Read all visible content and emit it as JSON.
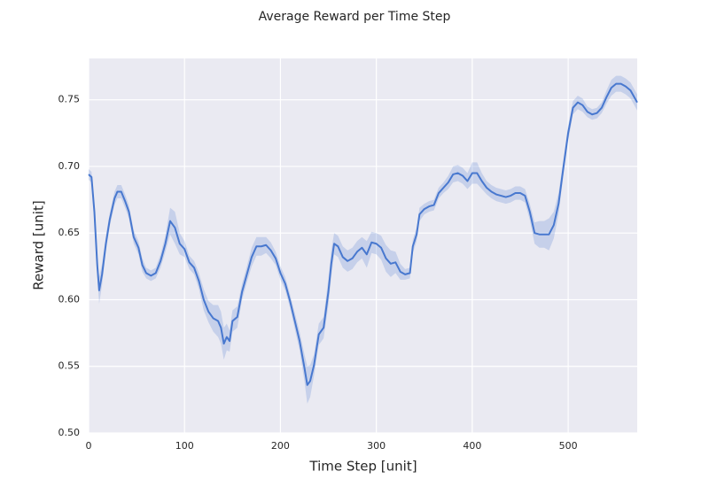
{
  "chart_data": {
    "type": "line",
    "title": "Average Reward per Time Step",
    "xlabel": "Time Step [unit]",
    "ylabel": "Reward [unit]",
    "x": [
      0,
      3,
      6,
      9,
      11,
      14,
      18,
      22,
      27,
      30,
      34,
      38,
      42,
      47,
      52,
      56,
      60,
      65,
      70,
      75,
      80,
      85,
      90,
      95,
      100,
      105,
      110,
      115,
      120,
      125,
      130,
      135,
      138,
      141,
      144,
      147,
      150,
      155,
      160,
      165,
      170,
      175,
      180,
      185,
      190,
      195,
      200,
      205,
      210,
      215,
      220,
      225,
      228,
      231,
      235,
      240,
      245,
      250,
      253,
      256,
      260,
      265,
      270,
      275,
      280,
      285,
      290,
      295,
      300,
      305,
      310,
      315,
      320,
      325,
      330,
      335,
      338,
      342,
      345,
      350,
      355,
      360,
      365,
      370,
      375,
      380,
      385,
      390,
      395,
      400,
      405,
      410,
      415,
      420,
      425,
      430,
      435,
      440,
      445,
      450,
      455,
      460,
      465,
      470,
      475,
      480,
      485,
      490,
      495,
      500,
      505,
      510,
      515,
      520,
      525,
      530,
      535,
      540,
      545,
      550,
      555,
      560,
      565,
      572
    ],
    "series": [
      {
        "color": "#4878cf",
        "values": [
          0.694,
          0.692,
          0.666,
          0.626,
          0.607,
          0.619,
          0.642,
          0.66,
          0.676,
          0.681,
          0.681,
          0.674,
          0.666,
          0.647,
          0.639,
          0.626,
          0.62,
          0.618,
          0.62,
          0.629,
          0.642,
          0.659,
          0.654,
          0.642,
          0.638,
          0.628,
          0.624,
          0.614,
          0.6,
          0.591,
          0.586,
          0.584,
          0.579,
          0.567,
          0.572,
          0.569,
          0.584,
          0.587,
          0.606,
          0.619,
          0.632,
          0.64,
          0.64,
          0.641,
          0.637,
          0.631,
          0.62,
          0.612,
          0.599,
          0.584,
          0.569,
          0.549,
          0.536,
          0.539,
          0.551,
          0.574,
          0.579,
          0.606,
          0.627,
          0.642,
          0.64,
          0.632,
          0.629,
          0.631,
          0.636,
          0.639,
          0.634,
          0.643,
          0.642,
          0.639,
          0.631,
          0.627,
          0.628,
          0.621,
          0.619,
          0.62,
          0.64,
          0.649,
          0.664,
          0.668,
          0.67,
          0.671,
          0.68,
          0.684,
          0.688,
          0.694,
          0.695,
          0.693,
          0.689,
          0.695,
          0.695,
          0.689,
          0.684,
          0.681,
          0.679,
          0.678,
          0.677,
          0.678,
          0.68,
          0.68,
          0.678,
          0.666,
          0.65,
          0.649,
          0.649,
          0.649,
          0.656,
          0.672,
          0.699,
          0.725,
          0.744,
          0.748,
          0.746,
          0.741,
          0.739,
          0.74,
          0.744,
          0.752,
          0.759,
          0.762,
          0.762,
          0.76,
          0.757,
          0.748
        ],
        "lower": [
          0.69,
          0.688,
          0.66,
          0.618,
          0.597,
          0.611,
          0.636,
          0.655,
          0.671,
          0.676,
          0.676,
          0.669,
          0.661,
          0.642,
          0.634,
          0.621,
          0.616,
          0.614,
          0.616,
          0.624,
          0.636,
          0.649,
          0.642,
          0.634,
          0.632,
          0.623,
          0.619,
          0.608,
          0.592,
          0.583,
          0.576,
          0.572,
          0.567,
          0.555,
          0.562,
          0.561,
          0.576,
          0.579,
          0.6,
          0.613,
          0.625,
          0.633,
          0.633,
          0.635,
          0.631,
          0.626,
          0.615,
          0.607,
          0.594,
          0.578,
          0.562,
          0.539,
          0.522,
          0.527,
          0.543,
          0.566,
          0.571,
          0.596,
          0.617,
          0.634,
          0.632,
          0.624,
          0.621,
          0.623,
          0.628,
          0.631,
          0.624,
          0.635,
          0.634,
          0.63,
          0.621,
          0.617,
          0.62,
          0.615,
          0.615,
          0.616,
          0.635,
          0.644,
          0.659,
          0.664,
          0.666,
          0.667,
          0.676,
          0.68,
          0.683,
          0.688,
          0.689,
          0.687,
          0.683,
          0.687,
          0.687,
          0.683,
          0.679,
          0.676,
          0.674,
          0.673,
          0.672,
          0.673,
          0.675,
          0.675,
          0.673,
          0.66,
          0.642,
          0.639,
          0.639,
          0.637,
          0.646,
          0.664,
          0.693,
          0.719,
          0.739,
          0.743,
          0.741,
          0.737,
          0.735,
          0.736,
          0.74,
          0.747,
          0.753,
          0.756,
          0.756,
          0.754,
          0.751,
          0.742
        ],
        "upper": [
          0.698,
          0.696,
          0.672,
          0.634,
          0.617,
          0.627,
          0.648,
          0.665,
          0.681,
          0.686,
          0.686,
          0.679,
          0.671,
          0.652,
          0.644,
          0.631,
          0.624,
          0.622,
          0.624,
          0.634,
          0.648,
          0.669,
          0.666,
          0.65,
          0.644,
          0.633,
          0.629,
          0.62,
          0.608,
          0.599,
          0.596,
          0.596,
          0.591,
          0.579,
          0.582,
          0.577,
          0.592,
          0.595,
          0.612,
          0.625,
          0.639,
          0.647,
          0.647,
          0.647,
          0.643,
          0.636,
          0.625,
          0.617,
          0.604,
          0.59,
          0.576,
          0.559,
          0.55,
          0.551,
          0.559,
          0.582,
          0.587,
          0.616,
          0.637,
          0.65,
          0.648,
          0.64,
          0.637,
          0.639,
          0.644,
          0.647,
          0.644,
          0.651,
          0.65,
          0.648,
          0.641,
          0.637,
          0.636,
          0.627,
          0.623,
          0.624,
          0.645,
          0.654,
          0.669,
          0.672,
          0.674,
          0.675,
          0.684,
          0.688,
          0.693,
          0.7,
          0.701,
          0.699,
          0.695,
          0.703,
          0.703,
          0.695,
          0.689,
          0.686,
          0.684,
          0.683,
          0.682,
          0.683,
          0.685,
          0.685,
          0.683,
          0.672,
          0.658,
          0.659,
          0.659,
          0.661,
          0.666,
          0.68,
          0.705,
          0.731,
          0.749,
          0.753,
          0.751,
          0.745,
          0.743,
          0.744,
          0.748,
          0.757,
          0.765,
          0.768,
          0.768,
          0.766,
          0.763,
          0.754
        ]
      }
    ],
    "xlim": [
      0,
      572
    ],
    "ylim": [
      0.5,
      0.781
    ],
    "xticks": [
      0,
      100,
      200,
      300,
      400,
      500
    ],
    "yticks": [
      {
        "value": 0.5,
        "label": "0.50"
      },
      0.55,
      {
        "value": 0.6,
        "label": "0.60"
      },
      0.65,
      {
        "value": 0.7,
        "label": "0.70"
      },
      0.75
    ],
    "grid": true
  }
}
